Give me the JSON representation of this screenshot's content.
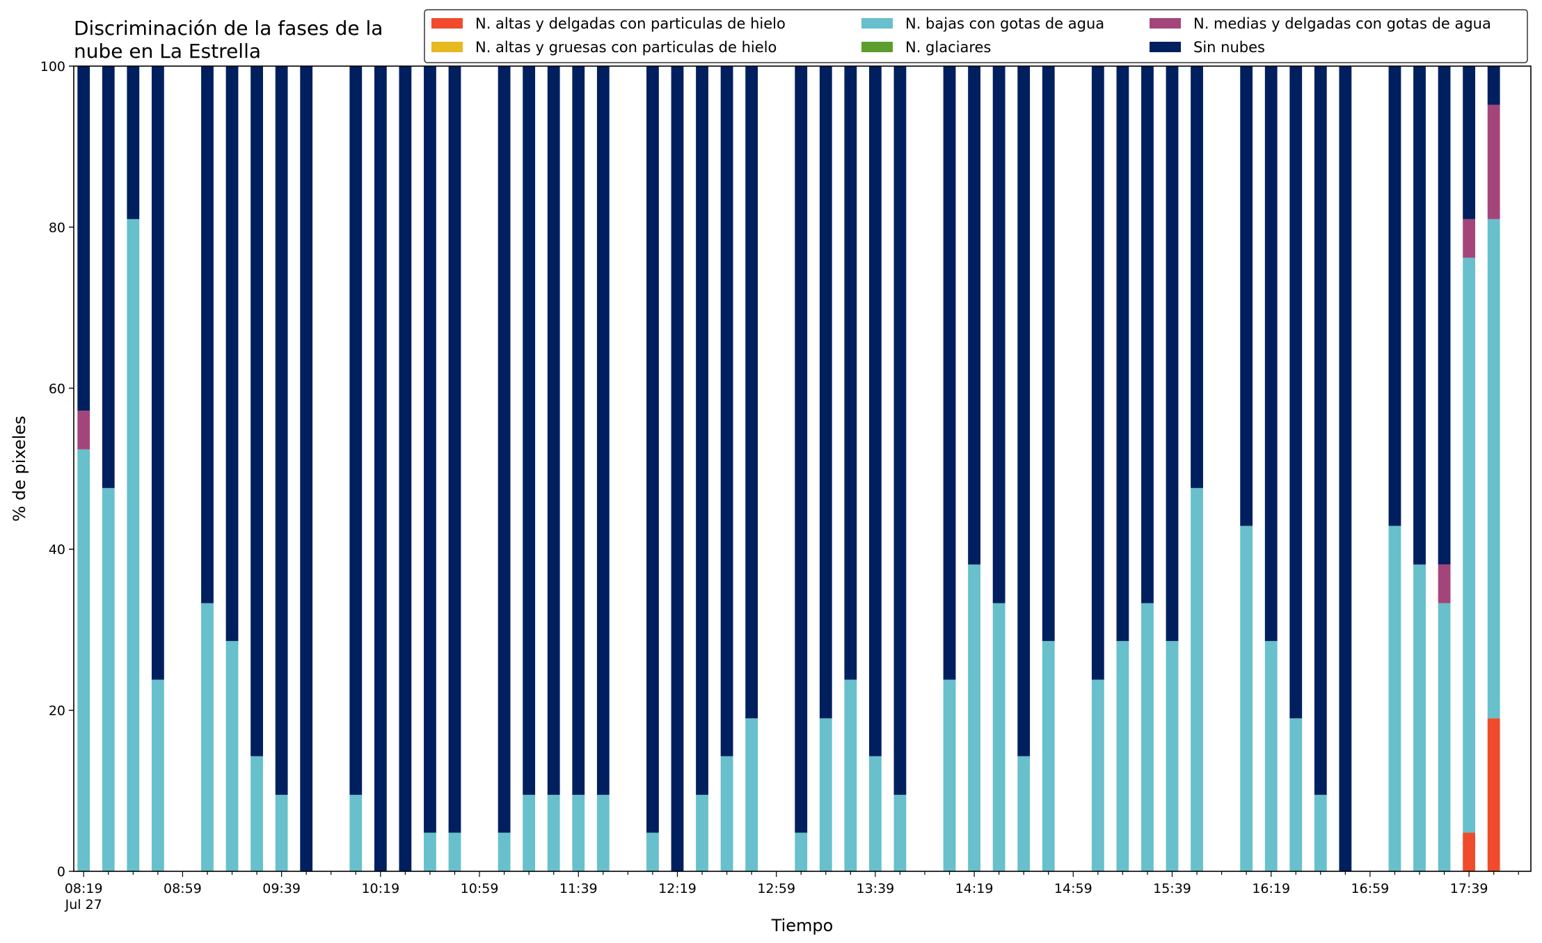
{
  "chart_data": {
    "type": "bar",
    "stacked": true,
    "title_lines": [
      "Discriminación de la fases de la",
      "nube en La Estrella"
    ],
    "xlabel": "Tiempo",
    "ylabel": "% de pixeles",
    "ylim": [
      0,
      100
    ],
    "yticks": [
      0,
      20,
      40,
      60,
      80,
      100
    ],
    "x_tick_labels": [
      {
        "minute": 0,
        "label": "08:19",
        "sub": "Jul 27"
      },
      {
        "minute": 40,
        "label": "08:59"
      },
      {
        "minute": 80,
        "label": "09:39"
      },
      {
        "minute": 120,
        "label": "10:19"
      },
      {
        "minute": 160,
        "label": "10:59"
      },
      {
        "minute": 200,
        "label": "11:39"
      },
      {
        "minute": 240,
        "label": "12:19"
      },
      {
        "minute": 280,
        "label": "12:59"
      },
      {
        "minute": 320,
        "label": "13:39"
      },
      {
        "minute": 360,
        "label": "14:19"
      },
      {
        "minute": 400,
        "label": "14:59"
      },
      {
        "minute": 440,
        "label": "15:39"
      },
      {
        "minute": 480,
        "label": "16:19"
      },
      {
        "minute": 520,
        "label": "16:59"
      },
      {
        "minute": 560,
        "label": "17:39"
      }
    ],
    "x_minor_tick_step": 10,
    "x_range_minutes": [
      -4,
      585
    ],
    "x": [
      0,
      10,
      20,
      30,
      50,
      60,
      70,
      80,
      90,
      110,
      120,
      130,
      140,
      150,
      170,
      180,
      190,
      200,
      210,
      230,
      240,
      250,
      260,
      270,
      290,
      300,
      310,
      320,
      330,
      350,
      360,
      370,
      380,
      390,
      410,
      420,
      430,
      440,
      450,
      470,
      480,
      490,
      500,
      510,
      530,
      540,
      550,
      560,
      570
    ],
    "series": [
      {
        "name": "N. altas y delgadas con particulas de hielo",
        "color": "#ef4b2c",
        "values": [
          0,
          0,
          0,
          0,
          0,
          0,
          0,
          0,
          0,
          0,
          0,
          0,
          0,
          0,
          0,
          0,
          0,
          0,
          0,
          0,
          0,
          0,
          0,
          0,
          0,
          0,
          0,
          0,
          0,
          0,
          0,
          0,
          0,
          0,
          0,
          0,
          0,
          0,
          0,
          0,
          0,
          0,
          0,
          0,
          0,
          0,
          0,
          4.8,
          19
        ]
      },
      {
        "name": "N. altas y gruesas con particulas de hielo",
        "color": "#e5b91f",
        "values": [
          0,
          0,
          0,
          0,
          0,
          0,
          0,
          0,
          0,
          0,
          0,
          0,
          0,
          0,
          0,
          0,
          0,
          0,
          0,
          0,
          0,
          0,
          0,
          0,
          0,
          0,
          0,
          0,
          0,
          0,
          0,
          0,
          0,
          0,
          0,
          0,
          0,
          0,
          0,
          0,
          0,
          0,
          0,
          0,
          0,
          0,
          0,
          0,
          0
        ]
      },
      {
        "name": "N. bajas con gotas de agua",
        "color": "#67c0cb",
        "values": [
          52.4,
          47.6,
          81,
          23.8,
          33.3,
          28.6,
          14.3,
          9.5,
          0,
          9.5,
          0,
          0,
          4.8,
          4.8,
          4.8,
          9.5,
          9.5,
          9.5,
          9.5,
          4.8,
          0,
          9.5,
          14.3,
          19,
          4.8,
          19,
          23.8,
          14.3,
          9.5,
          23.8,
          38.1,
          33.3,
          14.3,
          28.6,
          23.8,
          28.6,
          33.3,
          28.6,
          47.6,
          42.9,
          28.6,
          19,
          9.5,
          0,
          42.9,
          38.1,
          33.3,
          71.4,
          62
        ]
      },
      {
        "name": "N. glaciares",
        "color": "#5c9e2e",
        "values": [
          0,
          0,
          0,
          0,
          0,
          0,
          0,
          0,
          0,
          0,
          0,
          0,
          0,
          0,
          0,
          0,
          0,
          0,
          0,
          0,
          0,
          0,
          0,
          0,
          0,
          0,
          0,
          0,
          0,
          0,
          0,
          0,
          0,
          0,
          0,
          0,
          0,
          0,
          0,
          0,
          0,
          0,
          0,
          0,
          0,
          0,
          0,
          0,
          0
        ]
      },
      {
        "name": "N. medias y delgadas con gotas de agua",
        "color": "#a3457b",
        "values": [
          4.8,
          0,
          0,
          0,
          0,
          0,
          0,
          0,
          0,
          0,
          0,
          0,
          0,
          0,
          0,
          0,
          0,
          0,
          0,
          0,
          0,
          0,
          0,
          0,
          0,
          0,
          0,
          0,
          0,
          0,
          0,
          0,
          0,
          0,
          0,
          0,
          0,
          0,
          0,
          0,
          0,
          0,
          0,
          0,
          0,
          0,
          4.8,
          4.8,
          14.2
        ]
      },
      {
        "name": "Sin nubes",
        "color": "#001f5f",
        "values": [
          42.8,
          52.4,
          19,
          76.2,
          66.7,
          71.4,
          85.7,
          90.5,
          100,
          90.5,
          100,
          100,
          95.2,
          95.2,
          95.2,
          90.5,
          90.5,
          90.5,
          90.5,
          95.2,
          100,
          90.5,
          85.7,
          81,
          95.2,
          81,
          76.2,
          85.7,
          90.5,
          76.2,
          61.9,
          66.7,
          85.7,
          71.4,
          76.2,
          71.4,
          66.7,
          71.4,
          52.4,
          57.1,
          71.4,
          81,
          90.5,
          100,
          57.1,
          61.9,
          61.9,
          19,
          4.8
        ]
      }
    ],
    "legend": {
      "placement": "top-right",
      "columns": 3,
      "order": [
        0,
        1,
        2,
        3,
        4,
        5
      ]
    }
  }
}
